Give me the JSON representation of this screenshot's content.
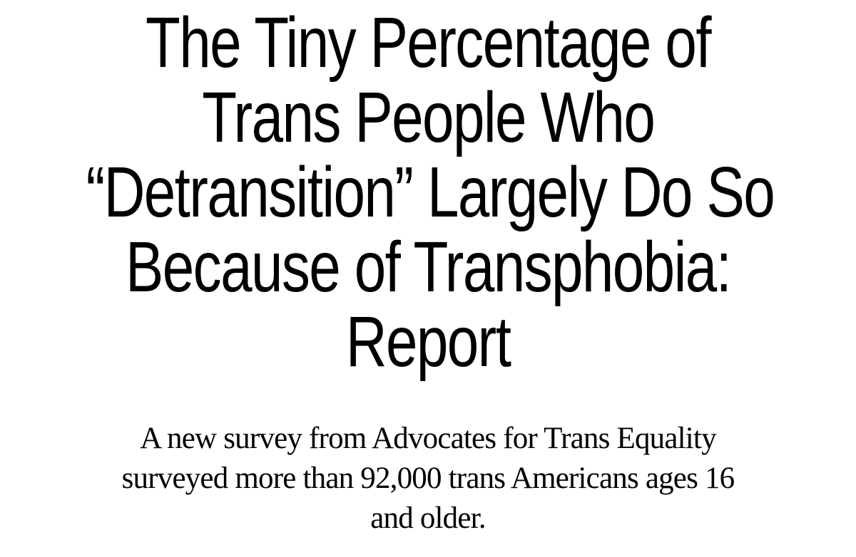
{
  "headline": {
    "lines": [
      "The Tiny Percentage of",
      "Trans People Who",
      "“Detransition” Largely Do So",
      "Because of Transphobia:",
      "Report"
    ]
  },
  "subheadline": {
    "lines": [
      "A new survey from Advocates for Trans Equality",
      "surveyed more than 92,000 trans Americans ages 16",
      "and older."
    ]
  }
}
